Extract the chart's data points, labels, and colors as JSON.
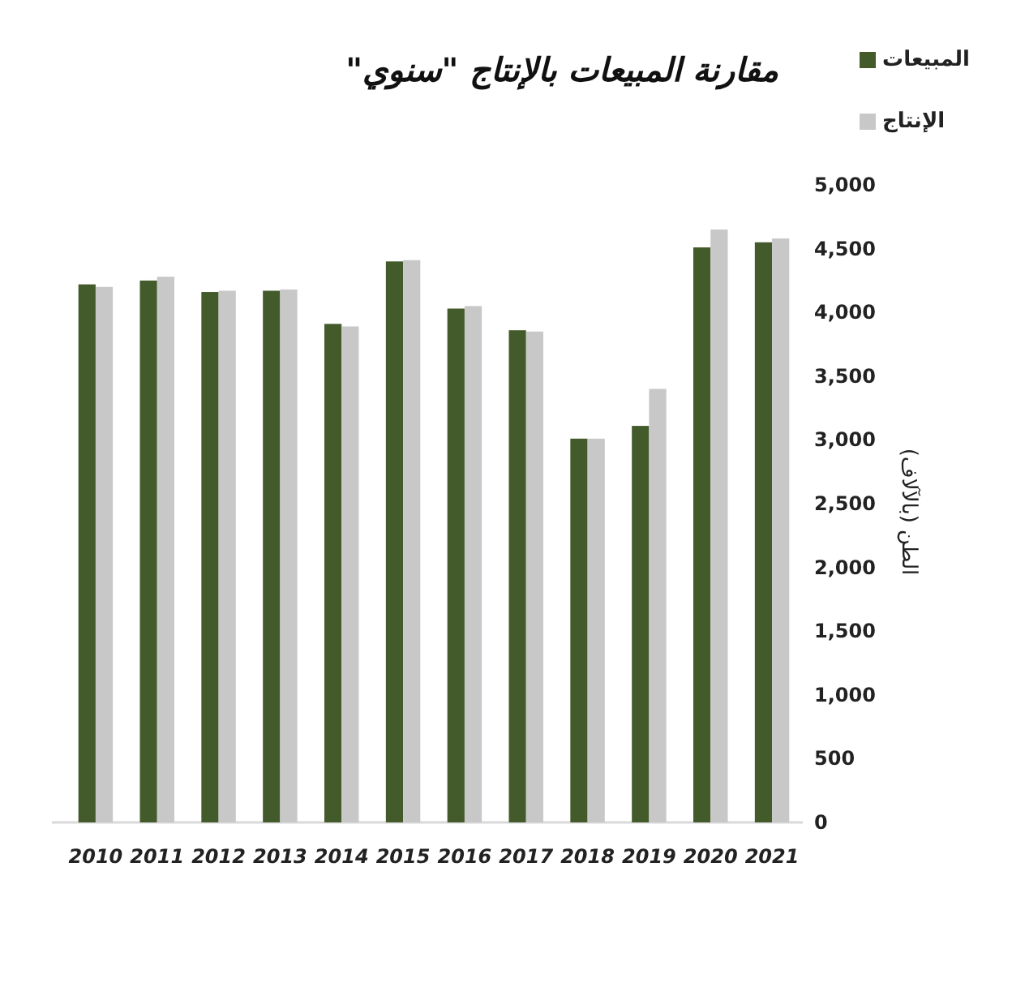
{
  "chart_data": {
    "type": "bar",
    "title": "مقارنة المبيعات بالإنتاج \"سنوي\"",
    "ylabel": "الطن (بالآلاف)",
    "legend": "top right",
    "categories": [
      "2010",
      "2011",
      "2012",
      "2013",
      "2014",
      "2015",
      "2016",
      "2017",
      "2018",
      "2019",
      "2020",
      "2021"
    ],
    "series": [
      {
        "name": "المبيعات",
        "color": "#435a2a",
        "values": [
          4220,
          4250,
          4160,
          4170,
          3910,
          4400,
          4030,
          3860,
          3010,
          3110,
          4510,
          4550
        ]
      },
      {
        "name": "الإنتاج",
        "color": "#c8c8c8",
        "values": [
          4200,
          4280,
          4170,
          4180,
          3890,
          4410,
          4050,
          3850,
          3010,
          3400,
          4650,
          4580
        ]
      }
    ],
    "ylim": [
      0,
      5000
    ],
    "yticks": [
      {
        "value": 0,
        "label": "0"
      },
      {
        "value": 500,
        "label": "500"
      },
      {
        "value": 1000,
        "label": "1,000"
      },
      {
        "value": 1500,
        "label": "1,500"
      },
      {
        "value": 2000,
        "label": "2,000"
      },
      {
        "value": 2500,
        "label": "2,500"
      },
      {
        "value": 3000,
        "label": "3,000"
      },
      {
        "value": 3500,
        "label": "3,500"
      },
      {
        "value": 4000,
        "label": "4,000"
      },
      {
        "value": 4500,
        "label": "4,500"
      },
      {
        "value": 5000,
        "label": "5,000"
      }
    ]
  }
}
